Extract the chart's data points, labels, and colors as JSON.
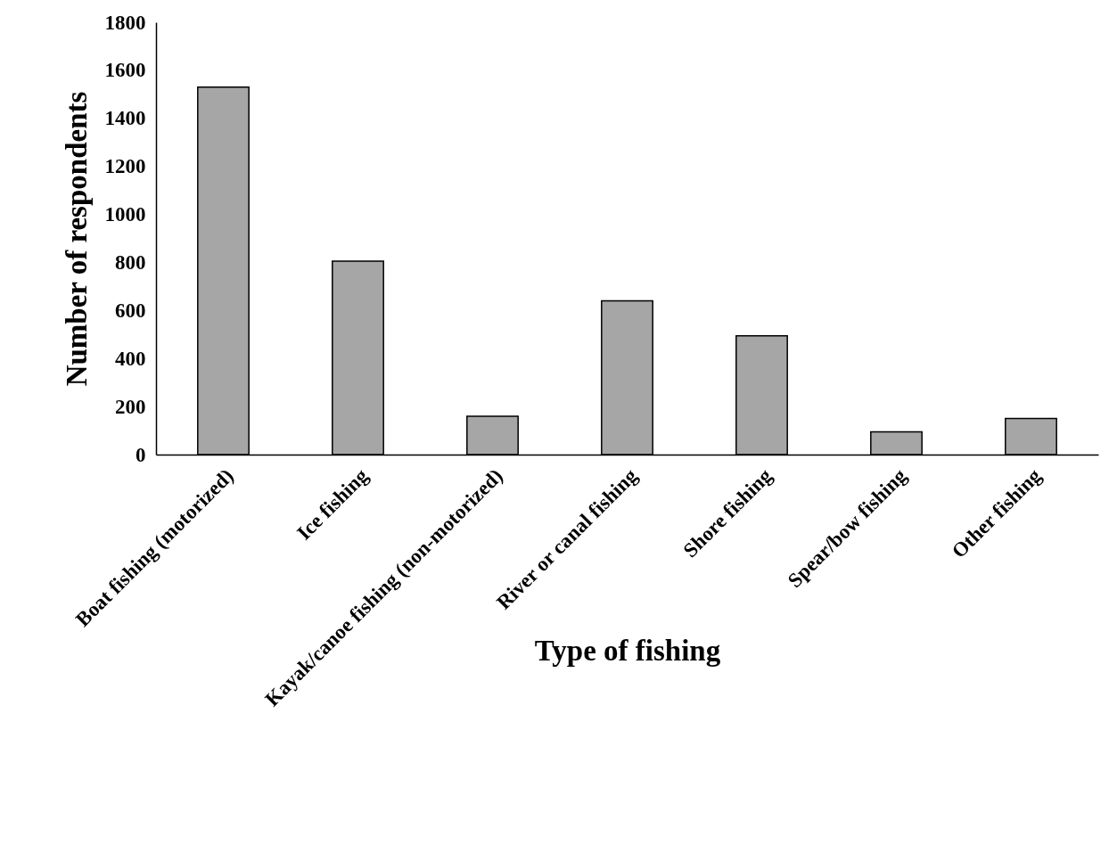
{
  "chart_data": {
    "type": "bar",
    "xlabel": "Type of fishing",
    "ylabel": "Number of respondents",
    "categories": [
      "Boat fishing (motorized)",
      "Ice fishing",
      "Kayak/canoe fishing (non-motorized)",
      "River or canal fishing",
      "Shore fishing",
      "Spear/bow fishing",
      "Other fishing"
    ],
    "values": [
      1530,
      805,
      160,
      640,
      495,
      95,
      150
    ],
    "color": "#a6a6a6",
    "ylim": [
      0,
      1800
    ],
    "yticks": [
      0,
      200,
      400,
      600,
      800,
      1000,
      1200,
      1400,
      1600,
      1800
    ],
    "grid": false
  }
}
